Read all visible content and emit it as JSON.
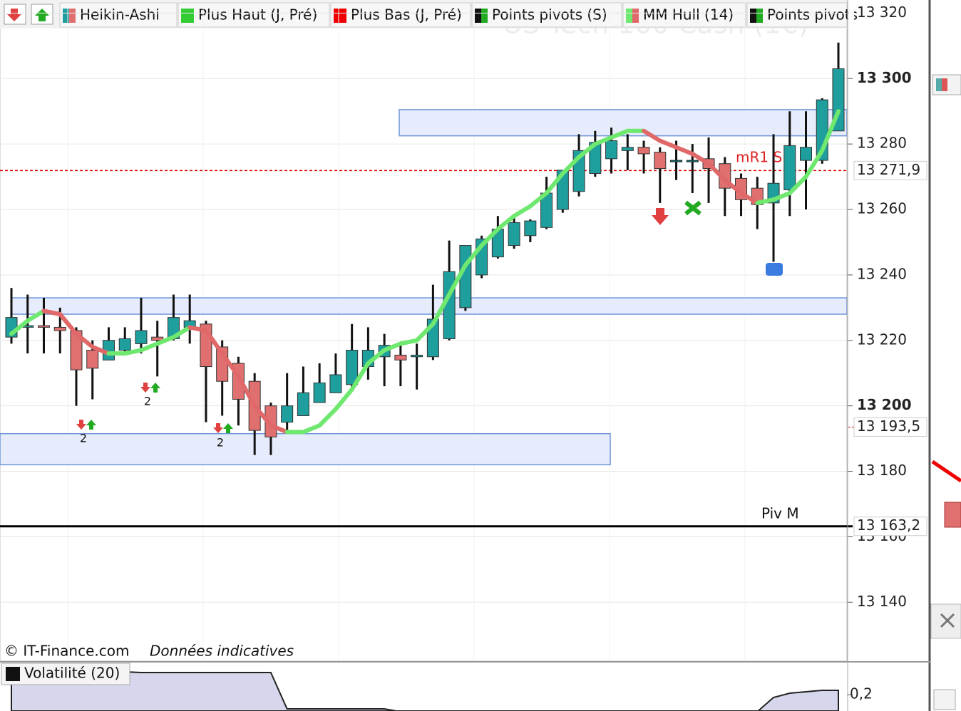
{
  "chart_data": {
    "type": "candlestick",
    "watermark": "US Tech 100 Cash (1€)",
    "legend": [
      "Heikin-Ashi",
      "Plus Haut (J, Pré)",
      "Plus Bas (J, Pré)",
      "Points pivots (S)",
      "MM Hull (14)",
      "Points pivots"
    ],
    "ylim": [
      13122,
      13324
    ],
    "yticks": [
      {
        "value": 13320,
        "label": "13 320"
      },
      {
        "value": 13300,
        "label": "13 300"
      },
      {
        "value": 13280,
        "label": "13 280"
      },
      {
        "value": 13260,
        "label": "13 260"
      },
      {
        "value": 13240,
        "label": "13 240"
      },
      {
        "value": 13220,
        "label": "13 220"
      },
      {
        "value": 13200,
        "label": "13 200"
      },
      {
        "value": 13180,
        "label": "13 180"
      },
      {
        "value": 13160,
        "label": "13 160"
      },
      {
        "value": 13140,
        "label": "13 140"
      }
    ],
    "grid": true,
    "open": [
      13221,
      13224,
      13224.5,
      13224,
      13223,
      13217,
      13214,
      13217,
      13219,
      13221,
      13220.5,
      13224,
      13225,
      13218,
      13213,
      13207.5,
      13200,
      13195,
      13197,
      13201,
      13204,
      13206.5,
      13212,
      13215,
      13215.5,
      13215,
      13215,
      13220.5,
      13230,
      13240,
      13245.5,
      13249,
      13252,
      13254.5,
      13260,
      13265.5,
      13271,
      13275.5,
      13278,
      13279,
      13277.5,
      13275,
      13275,
      13275.5,
      13274,
      13269.5,
      13266.5,
      13262,
      13266,
      13275,
      13275,
      13284
    ],
    "close": [
      13227,
      13224.5,
      13224,
      13223,
      13211,
      13211.5,
      13220,
      13220.5,
      13223,
      13220,
      13227,
      13226,
      13212,
      13207.5,
      13202,
      13192.5,
      13190.5,
      13200,
      13204,
      13207,
      13209.5,
      13217,
      13217,
      13218.5,
      13214,
      13215.5,
      13226.5,
      13241,
      13249,
      13251,
      13254,
      13256,
      13256.5,
      13265,
      13272,
      13278,
      13280.5,
      13281,
      13279,
      13277,
      13272.5,
      13275,
      13275,
      13272.5,
      13266.5,
      13263,
      13261.5,
      13268,
      13279.5,
      13279,
      13293.5,
      13303
    ],
    "high": [
      13236,
      13234,
      13233,
      13230,
      13224,
      13220,
      13224,
      13224,
      13233,
      13226,
      13234,
      13234,
      13226,
      13220,
      13215,
      13210,
      13201,
      13210,
      13212,
      13213,
      13216,
      13225,
      13224,
      13222,
      13219,
      13219,
      13237,
      13250.5,
      13249,
      13252,
      13258,
      13258,
      13257,
      13270,
      13272,
      13283,
      13284,
      13285,
      13283,
      13281,
      13279,
      13281,
      13280,
      13282,
      13276,
      13271,
      13270,
      13283,
      13290,
      13290,
      13294,
      13311
    ],
    "low": [
      13219,
      13216,
      13216,
      13216,
      13200,
      13202,
      13214,
      13216,
      13216,
      13209,
      13220,
      13219,
      13195,
      13197,
      13194,
      13185,
      13185,
      13192,
      13197,
      13201,
      13204,
      13205,
      13208,
      13206,
      13206,
      13205,
      13214,
      13220,
      13229,
      13239,
      13245,
      13248,
      13250,
      13254,
      13259,
      13264,
      13270,
      13271,
      13272,
      13271,
      13262,
      13269,
      13265,
      13262,
      13258,
      13258,
      13254,
      13244,
      13258,
      13260,
      13274,
      13284
    ],
    "hull": {
      "name": "MM Hull (14)",
      "values": [
        13222,
        13226,
        13229,
        13228,
        13222,
        13218,
        13216,
        13216,
        13217,
        13219,
        13221,
        13224,
        13223,
        13216,
        13209,
        13200,
        13194,
        13192,
        13192,
        13194,
        13199,
        13205,
        13213,
        13217,
        13219,
        13220,
        13225,
        13234,
        13243,
        13249,
        13254,
        13258,
        13261,
        13265,
        13271,
        13276,
        13280,
        13282,
        13284,
        13284,
        13281,
        13279,
        13277,
        13274,
        13269,
        13265,
        13262,
        13263,
        13265,
        13270,
        13278,
        13290
      ]
    },
    "zones": [
      {
        "from": 13282.5,
        "to": 13290.5
      },
      {
        "from": 13228,
        "to": 13233
      },
      {
        "from": 13182,
        "to": 13191.5
      }
    ],
    "levels": [
      {
        "value": 13271.9,
        "label": "13 271,9",
        "color": "#e00000"
      },
      {
        "value": 13193.5,
        "label": "13 193,5",
        "color": "#e00000"
      },
      {
        "value": 13163.2,
        "label": "13 163,2",
        "color": "#000000"
      }
    ],
    "annotations": [
      "mR1 S",
      "Piv M",
      "2",
      "2",
      "2"
    ],
    "footer": {
      "copyright": "© IT-Finance.com",
      "note": "Données indicatives"
    },
    "volatility": {
      "name": "Volatilité (20)",
      "ylim": [
        0.1425,
        0.3
      ],
      "yticks": [
        {
          "value": 0.2,
          "label": "0,2"
        }
      ],
      "values": [
        0.28,
        0.28,
        0.28,
        0.28,
        0.28,
        0.28,
        0.28,
        0.28,
        0.2775,
        0.2775,
        0.2775,
        0.2775,
        0.2775,
        0.2775,
        0.2775,
        0.2775,
        0.2775,
        0.15,
        0.15,
        0.15,
        0.15,
        0.15,
        0.15,
        0.15,
        0.14,
        0.14,
        0.14,
        0.14,
        0.14,
        0.14,
        0.14,
        0.14,
        0.14,
        0.14,
        0.14,
        0.14,
        0.14,
        0.14,
        0.14,
        0.14,
        0.14,
        0.14,
        0.14,
        0.14,
        0.14,
        0.14,
        0.14,
        0.19,
        0.205,
        0.21,
        0.215,
        0.215
      ]
    }
  }
}
